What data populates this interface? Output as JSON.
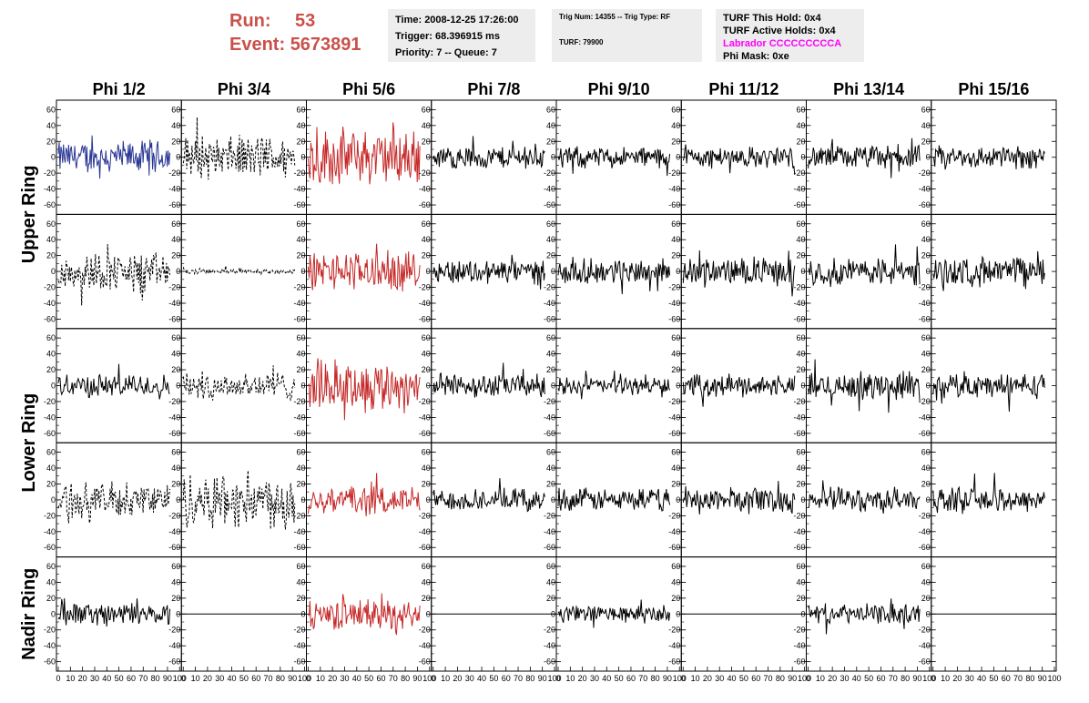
{
  "header": {
    "run_label": "Run:",
    "run_value": "53",
    "event_label": "Event:",
    "event_value": "5673891",
    "accent_color": "#c9514a"
  },
  "info_box_1": {
    "time": "Time: 2008-12-25 17:26:00",
    "trigger": "Trigger: 68.396915 ms",
    "priority": "Priority: 7 -- Queue: 7"
  },
  "info_box_2": {
    "trig": "Trig Num: 14355 -- Trig Type: RF",
    "turf": "TURF: 79900"
  },
  "info_box_3": {
    "this_hold": "TURF This Hold: 0x4",
    "active_holds": "TURF Active Holds: 0x4",
    "labrador": "Labrador CCCCCCCCCA",
    "labrador_color": "#ff00ff",
    "phi_mask": "Phi Mask: 0xe"
  },
  "chart_data": {
    "type": "line",
    "layout": "grid of waveform panels, 8 columns x 5 rows",
    "columns": [
      "Phi 1/2",
      "Phi 3/4",
      "Phi 5/6",
      "Phi 7/8",
      "Phi 9/10",
      "Phi 11/12",
      "Phi 13/14",
      "Phi 15/16"
    ],
    "rows": [
      "Upper Ring",
      "Upper Ring",
      "Lower Ring",
      "Lower Ring",
      "Nadir Ring"
    ],
    "row_labels": [
      {
        "text": "Upper Ring",
        "spans_rows": [
          0,
          1
        ]
      },
      {
        "text": "Lower Ring",
        "spans_rows": [
          2,
          3
        ]
      },
      {
        "text": "Nadir Ring",
        "spans_rows": [
          4,
          4
        ]
      }
    ],
    "xlim": [
      0,
      100
    ],
    "ylim": [
      -65,
      65
    ],
    "x_ticks": [
      0,
      10,
      20,
      30,
      40,
      50,
      60,
      70,
      80,
      90,
      100
    ],
    "x_tick_labels": [
      "0",
      "10",
      "20",
      "30",
      "40",
      "50",
      "60",
      "70",
      "80",
      "90",
      "100"
    ],
    "x_tick_labels_last_col": [
      "0",
      "10",
      "20",
      "30",
      "40",
      "50",
      "60",
      "70",
      "80",
      "90",
      "100"
    ],
    "y_ticks": [
      -60,
      -40,
      -20,
      0,
      20,
      40,
      60
    ],
    "y_tick_labels": [
      "-60",
      "-40",
      "-20",
      "0",
      "20",
      "40",
      "60"
    ],
    "samples_per_trace": 130,
    "trace_x_end": 92,
    "grid": false,
    "colors": {
      "blue": "#283593",
      "red": "#c62828",
      "black": "#000000"
    },
    "panels": [
      [
        {
          "style": "blue",
          "amp": 17
        },
        {
          "style": "dashed",
          "amp": 22
        },
        {
          "style": "red",
          "amp": 30
        },
        {
          "style": "solid",
          "amp": 12
        },
        {
          "style": "solid",
          "amp": 11
        },
        {
          "style": "solid",
          "amp": 11
        },
        {
          "style": "solid",
          "amp": 12
        },
        {
          "style": "solid",
          "amp": 12
        }
      ],
      [
        {
          "style": "dashed",
          "amp": 20
        },
        {
          "style": "dashed",
          "amp": 3
        },
        {
          "style": "red",
          "amp": 20
        },
        {
          "style": "solid",
          "amp": 13
        },
        {
          "style": "solid",
          "amp": 13
        },
        {
          "style": "solid",
          "amp": 14
        },
        {
          "style": "solid",
          "amp": 15
        },
        {
          "style": "solid",
          "amp": 15
        }
      ],
      [
        {
          "style": "solid",
          "amp": 12
        },
        {
          "style": "dashed",
          "amp": 15
        },
        {
          "style": "red",
          "amp": 27
        },
        {
          "style": "solid",
          "amp": 12
        },
        {
          "style": "solid",
          "amp": 9
        },
        {
          "style": "solid",
          "amp": 11
        },
        {
          "style": "solid",
          "amp": 14
        },
        {
          "style": "solid",
          "amp": 13
        }
      ],
      [
        {
          "style": "dashed",
          "amp": 18
        },
        {
          "style": "dashed",
          "amp": 30
        },
        {
          "style": "red",
          "amp": 15
        },
        {
          "style": "solid",
          "amp": 11
        },
        {
          "style": "solid",
          "amp": 12
        },
        {
          "style": "solid",
          "amp": 14
        },
        {
          "style": "solid",
          "amp": 13
        },
        {
          "style": "solid",
          "amp": 13
        }
      ],
      [
        {
          "style": "solid",
          "amp": 12
        },
        {
          "style": "flat",
          "amp": 0
        },
        {
          "style": "red",
          "amp": 16
        },
        {
          "style": "flat",
          "amp": 0
        },
        {
          "style": "solid",
          "amp": 9
        },
        {
          "style": "flat",
          "amp": 0
        },
        {
          "style": "solid",
          "amp": 10
        },
        {
          "style": "flat",
          "amp": 0
        }
      ]
    ]
  }
}
